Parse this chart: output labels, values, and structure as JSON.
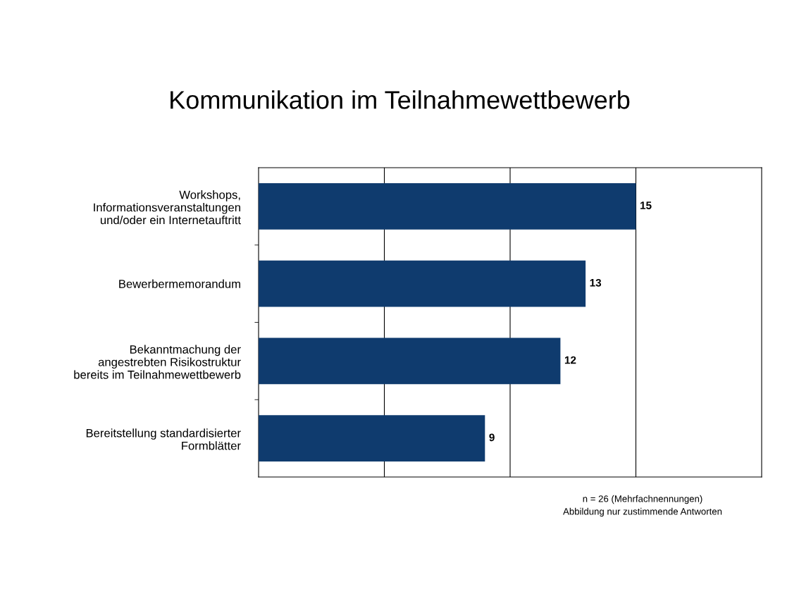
{
  "chart_data": {
    "type": "bar",
    "orientation": "horizontal",
    "title": "Kommunikation im Teilnahmewettbewerb",
    "categories": [
      "Workshops,\nInformationsveranstaltungen\nund/oder ein Internetauftritt",
      "Bewerbermemorandum",
      "Bekanntmachung der\nangestrebten Risikostruktur\nbereits im Teilnahmewettbewerb",
      "Bereitstellung standardisierter\nFormblätter"
    ],
    "values": [
      15,
      13,
      12,
      9
    ],
    "color": "#0f3b6e",
    "xlim": [
      0,
      20
    ],
    "xticks": [
      {
        "value": 5,
        "label": null
      },
      {
        "value": 10,
        "label": null
      },
      {
        "value": 15,
        "label": null
      }
    ],
    "grid": "x",
    "tick_labels": "y",
    "data_labels": true,
    "annotations": [
      "n = 26 (Mehrfachnennungen)",
      "Abbildung nur zustimmende Antworten"
    ]
  }
}
